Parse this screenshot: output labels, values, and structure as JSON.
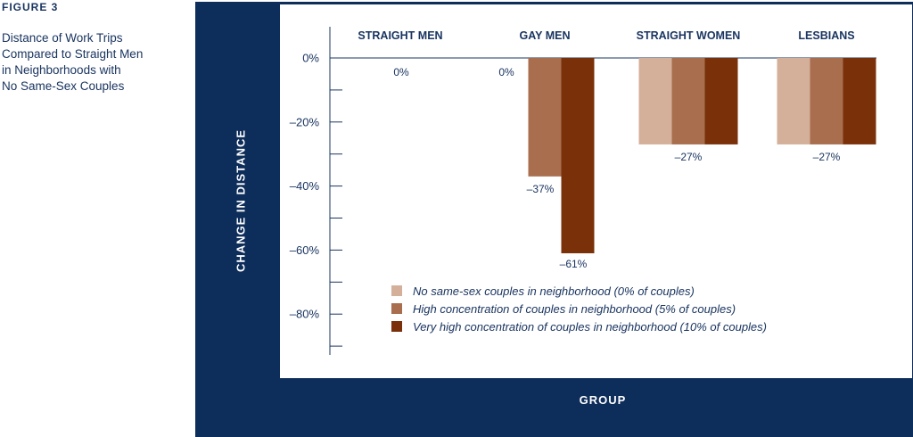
{
  "figure": {
    "label": "FIGURE 3",
    "caption_lines": [
      "Distance of Work Trips",
      "Compared to Straight Men",
      "in Neighborhoods with",
      "No Same-Sex Couples"
    ]
  },
  "colors": {
    "frame": "#0d2d5a",
    "text": "#1a3560",
    "series": [
      "#d4b09a",
      "#a86e4e",
      "#7a3009"
    ]
  },
  "chart_data": {
    "type": "bar",
    "title": "",
    "xlabel": "GROUP",
    "ylabel": "CHANGE IN DISTANCE",
    "categories": [
      "STRAIGHT MEN",
      "GAY MEN",
      "STRAIGHT WOMEN",
      "LESBIANS"
    ],
    "series": [
      {
        "name": "No same-sex couples in neighborhood (0% of couples)",
        "values": [
          0,
          0,
          -27,
          -27
        ]
      },
      {
        "name": "High concentration of couples in neighborhood (5% of couples)",
        "values": [
          0,
          -37,
          -27,
          -27
        ]
      },
      {
        "name": "Very high concentration of couples in neighborhood (10% of couples)",
        "values": [
          0,
          -61,
          -27,
          -27
        ]
      }
    ],
    "ylim": [
      -92,
      8
    ],
    "yticks": [
      0,
      -20,
      -40,
      -60,
      -80
    ],
    "ytick_labels": [
      "0%",
      "–20%",
      "–40%",
      "–60%",
      "–80%"
    ],
    "data_labels": [
      {
        "category": "STRAIGHT MEN",
        "text": "0%"
      },
      {
        "category": "GAY MEN",
        "text": "0%"
      },
      {
        "category": "GAY MEN",
        "text": "–37%"
      },
      {
        "category": "GAY MEN",
        "text": "–61%"
      },
      {
        "category": "STRAIGHT WOMEN",
        "text": "–27%"
      },
      {
        "category": "LESBIANS",
        "text": "–27%"
      }
    ],
    "grid": false,
    "legend_position": "bottom-right"
  }
}
